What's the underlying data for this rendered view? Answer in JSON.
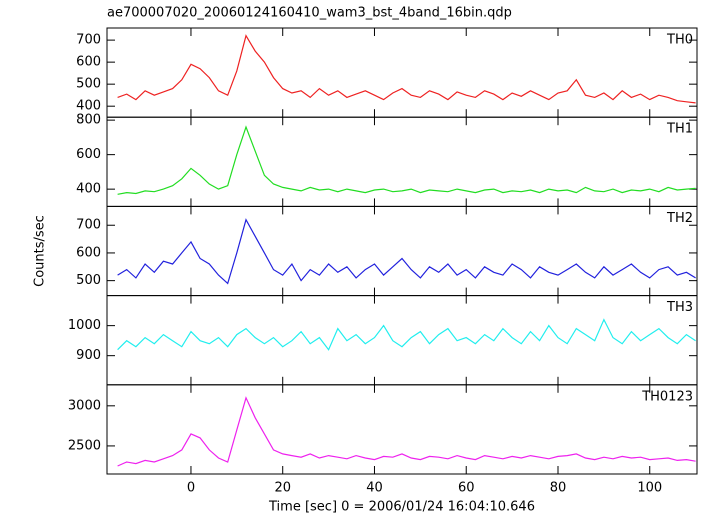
{
  "chart_data": {
    "type": "line",
    "title": "ae700007020_20060124160410_wam3_bst_4band_16bin.qdp",
    "xlabel": "Time [sec] 0 = 2006/01/24 16:04:10.646",
    "ylabel": "Counts/sec",
    "x": [
      -16,
      -14,
      -12,
      -10,
      -8,
      -6,
      -4,
      -2,
      0,
      2,
      4,
      6,
      8,
      10,
      12,
      14,
      16,
      18,
      20,
      22,
      24,
      26,
      28,
      30,
      32,
      34,
      36,
      38,
      40,
      42,
      44,
      46,
      48,
      50,
      52,
      54,
      56,
      58,
      60,
      62,
      64,
      66,
      68,
      70,
      72,
      74,
      76,
      78,
      80,
      82,
      84,
      86,
      88,
      90,
      92,
      94,
      96,
      98,
      100,
      102,
      104,
      106,
      108,
      110
    ],
    "xlim": [
      -18.3,
      110.3
    ],
    "xticks": [
      0,
      20,
      40,
      60,
      80,
      100
    ],
    "panels": [
      {
        "ylim": [
          350,
          755
        ],
        "yticks": [
          400,
          500,
          600,
          700
        ],
        "series": [
          {
            "name": "TH0",
            "color": "#ee2222",
            "values": [
              440,
              455,
              430,
              470,
              450,
              465,
              480,
              520,
              590,
              570,
              530,
              470,
              450,
              560,
              720,
              650,
              600,
              530,
              480,
              460,
              470,
              440,
              480,
              450,
              470,
              440,
              455,
              470,
              450,
              430,
              460,
              480,
              450,
              440,
              470,
              455,
              430,
              465,
              450,
              440,
              470,
              455,
              430,
              460,
              445,
              470,
              450,
              430,
              460,
              470,
              520,
              450,
              440,
              460,
              430,
              470,
              440,
              455,
              430,
              450,
              440,
              425,
              420,
              415
            ]
          }
        ]
      },
      {
        "ylim": [
          300,
          817
        ],
        "yticks": [
          400,
          600,
          800
        ],
        "series": [
          {
            "name": "TH1",
            "color": "#22dd22",
            "values": [
              370,
              380,
              375,
              390,
              385,
              400,
              420,
              460,
              520,
              480,
              430,
              400,
              420,
              600,
              760,
              620,
              480,
              430,
              410,
              400,
              390,
              410,
              395,
              400,
              385,
              400,
              390,
              380,
              395,
              400,
              385,
              390,
              400,
              380,
              395,
              390,
              385,
              400,
              390,
              380,
              395,
              400,
              380,
              390,
              385,
              395,
              380,
              400,
              390,
              395,
              380,
              410,
              390,
              385,
              400,
              380,
              395,
              390,
              400,
              385,
              410,
              395,
              400,
              405
            ]
          }
        ]
      },
      {
        "ylim": [
          446,
          768
        ],
        "yticks": [
          500,
          600,
          700
        ],
        "series": [
          {
            "name": "TH2",
            "color": "#2222dd",
            "values": [
              520,
              540,
              510,
              560,
              530,
              570,
              560,
              600,
              640,
              580,
              560,
              520,
              490,
              600,
              720,
              660,
              600,
              540,
              520,
              560,
              500,
              540,
              520,
              560,
              530,
              550,
              510,
              540,
              560,
              520,
              550,
              580,
              540,
              510,
              550,
              530,
              560,
              520,
              540,
              510,
              550,
              530,
              520,
              560,
              540,
              510,
              550,
              530,
              520,
              540,
              560,
              530,
              510,
              550,
              520,
              540,
              560,
              530,
              510,
              540,
              550,
              520,
              530,
              510
            ]
          }
        ]
      },
      {
        "ylim": [
          803,
          1100
        ],
        "yticks": [
          900,
          1000
        ],
        "series": [
          {
            "name": "TH3",
            "color": "#22eeee",
            "values": [
              920,
              950,
              930,
              960,
              940,
              970,
              950,
              930,
              980,
              950,
              940,
              960,
              930,
              970,
              990,
              960,
              940,
              960,
              930,
              950,
              980,
              940,
              960,
              920,
              990,
              950,
              970,
              940,
              960,
              1000,
              950,
              930,
              960,
              980,
              940,
              970,
              990,
              950,
              960,
              940,
              970,
              950,
              990,
              960,
              940,
              980,
              950,
              1000,
              960,
              940,
              990,
              970,
              950,
              1020,
              960,
              940,
              980,
              950,
              970,
              990,
              960,
              940,
              970,
              950
            ]
          }
        ]
      },
      {
        "ylim": [
          2150,
          3262
        ],
        "yticks": [
          2500,
          3000
        ],
        "series": [
          {
            "name": "TH0123",
            "color": "#ee22ee",
            "values": [
              2250,
              2300,
              2280,
              2320,
              2300,
              2340,
              2380,
              2450,
              2650,
              2600,
              2450,
              2350,
              2300,
              2700,
              3100,
              2850,
              2650,
              2450,
              2400,
              2380,
              2360,
              2400,
              2350,
              2380,
              2360,
              2340,
              2380,
              2350,
              2330,
              2370,
              2360,
              2400,
              2350,
              2330,
              2370,
              2360,
              2340,
              2380,
              2350,
              2330,
              2380,
              2360,
              2340,
              2370,
              2350,
              2380,
              2360,
              2340,
              2370,
              2380,
              2400,
              2350,
              2330,
              2360,
              2340,
              2370,
              2350,
              2360,
              2330,
              2340,
              2350,
              2320,
              2330,
              2310
            ]
          }
        ]
      }
    ]
  }
}
